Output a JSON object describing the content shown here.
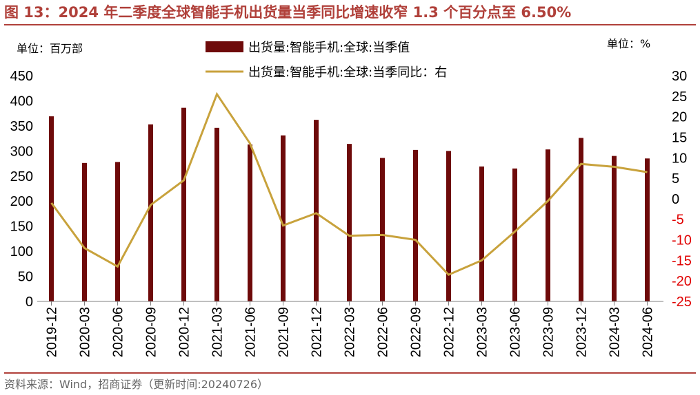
{
  "figure": {
    "title": "图 13：2024 年二季度全球智能手机出货量当季同比增速收窄 1.3 个百分点至 6.50%",
    "unit_left": "单位：百万部",
    "unit_right": "单位：%",
    "source": "资料来源：Wind，招商证券（更新时间:20240726）"
  },
  "colors": {
    "bar": "#6e0a0a",
    "line": "#c8a23c",
    "title": "#b0403a",
    "negative_tick": "#e00000"
  },
  "chart_data": {
    "type": "bar+line",
    "categories": [
      "2019-12",
      "2020-03",
      "2020-06",
      "2020-09",
      "2020-12",
      "2021-03",
      "2021-06",
      "2021-09",
      "2021-12",
      "2022-03",
      "2022-06",
      "2022-09",
      "2022-12",
      "2023-03",
      "2023-06",
      "2023-09",
      "2023-12",
      "2024-03",
      "2024-06"
    ],
    "series": [
      {
        "name": "出货量:智能手机:全球:当季值",
        "type": "bar",
        "axis": "left",
        "values": [
          369,
          276,
          278,
          353,
          386,
          346,
          313,
          331,
          362,
          314,
          286,
          302,
          300,
          269,
          265,
          303,
          326,
          290,
          285
        ]
      },
      {
        "name": "出货量:智能手机:全球:当季同比：右",
        "type": "line",
        "axis": "right",
        "values": [
          -1,
          -12,
          -16.5,
          -1.5,
          4.5,
          25.5,
          13.5,
          -6.5,
          -3.5,
          -9,
          -8.8,
          -10,
          -18.5,
          -15,
          -8,
          -0.5,
          8.5,
          7.8,
          6.5
        ]
      }
    ],
    "y_left": {
      "ylim": [
        0,
        450
      ],
      "ticks": [
        0,
        50,
        100,
        150,
        200,
        250,
        300,
        350,
        400,
        450
      ]
    },
    "y_right": {
      "ylim": [
        -25,
        30
      ],
      "ticks": [
        30,
        25,
        20,
        15,
        10,
        5,
        0,
        -5,
        -10,
        -15,
        -20,
        -25
      ]
    },
    "grid": false,
    "legend": "top-center"
  }
}
